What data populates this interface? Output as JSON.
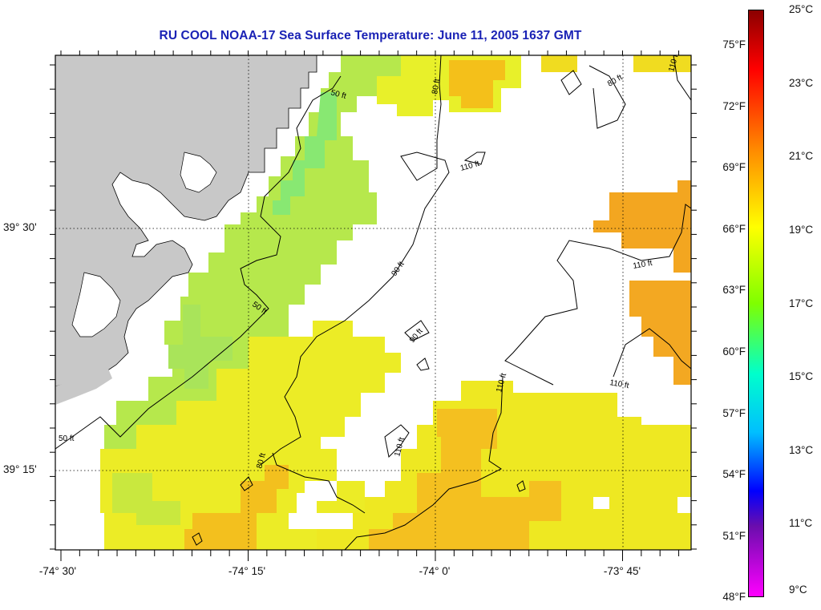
{
  "title": "RU COOL  NOAA-17  Sea Surface Temperature:  June 11, 2005 1637 GMT",
  "map": {
    "longitude_labels": [
      "-74° 30'",
      "-74° 15'",
      "-74° 0'",
      "-73° 45'"
    ],
    "latitude_labels": [
      "39° 30'",
      "39° 15'"
    ],
    "contours": [
      {
        "label": "50 ft",
        "depth_ft": 50
      },
      {
        "label": "80 ft",
        "depth_ft": 80
      },
      {
        "label": "90 ft",
        "depth_ft": 90
      },
      {
        "label": "110 ft",
        "depth_ft": 110
      }
    ],
    "colors": {
      "land": "#c8c8c8",
      "cloud_or_no_data": "#ffffff",
      "title": "#1a22b5",
      "contour": "#000000"
    }
  },
  "colorbar": {
    "fahrenheit_labels": [
      "75°F",
      "72°F",
      "69°F",
      "66°F",
      "63°F",
      "60°F",
      "57°F",
      "54°F",
      "51°F",
      "48°F"
    ],
    "celsius_labels": [
      "25°C",
      "23°C",
      "21°C",
      "19°C",
      "17°C",
      "15°C",
      "13°C",
      "11°C",
      "9°C"
    ],
    "range_celsius": [
      9,
      25
    ],
    "gradient": [
      "#8b0000",
      "#ff0000",
      "#ff8c00",
      "#ffff00",
      "#7fff00",
      "#00ffcc",
      "#00bfff",
      "#0000ff",
      "#6a0dad",
      "#ff00ff"
    ]
  }
}
